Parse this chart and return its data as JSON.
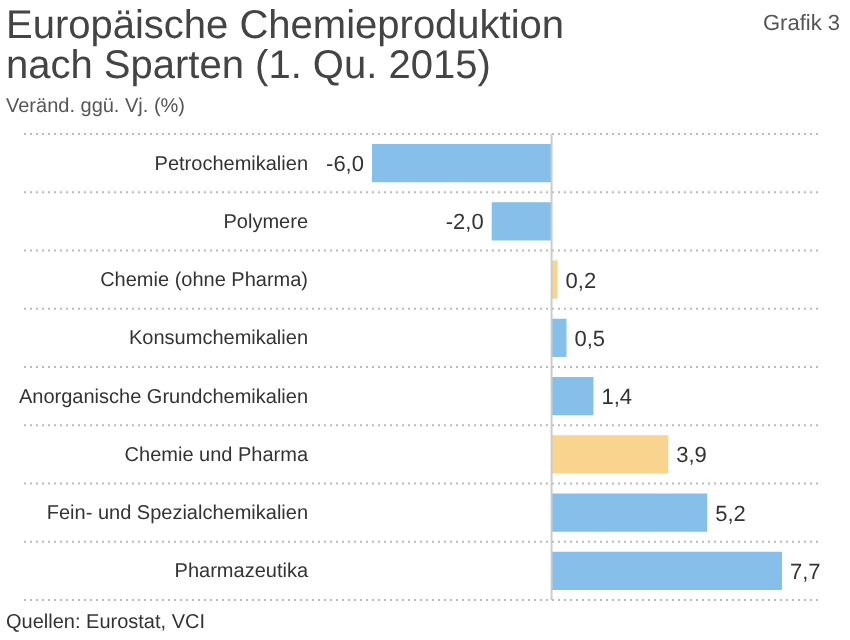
{
  "chart_data": {
    "type": "bar",
    "orientation": "horizontal",
    "title": "Europäische Chemieproduktion nach Sparten (1. Qu. 2015)",
    "subtitle": "Veränd. ggü. Vj. (%)",
    "annotations": [
      "Grafik 3",
      "Quellen: Eurostat, VCI"
    ],
    "categories": [
      "Petrochemikalien",
      "Polymere",
      "Chemie (ohne Pharma)",
      "Konsumchemikalien",
      "Anorganische Grundchemikalien",
      "Chemie und Pharma",
      "Fein- und Spezialchemikalien",
      "Pharmazeutika"
    ],
    "values": [
      -6.0,
      -2.0,
      0.2,
      0.5,
      1.4,
      3.9,
      5.2,
      7.7
    ],
    "colors": [
      "#86bfea",
      "#86bfea",
      "#f8d48f",
      "#86bfea",
      "#86bfea",
      "#f8d48f",
      "#86bfea",
      "#86bfea"
    ],
    "value_labels": [
      "-6,0",
      "-2,0",
      "0,2",
      "0,5",
      "1,4",
      "3,9",
      "5,2",
      "7,7"
    ],
    "xlim": [
      -6,
      7.7
    ],
    "grid": "y"
  }
}
